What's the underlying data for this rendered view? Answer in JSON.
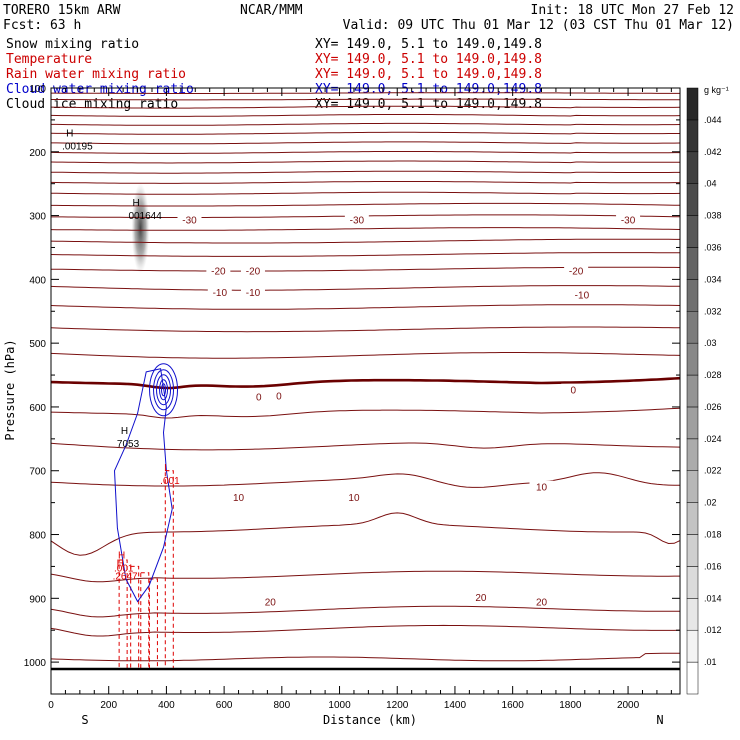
{
  "header": {
    "model": "TORERO  15km ARW",
    "org": "NCAR/MMM",
    "init": "Init: 18 UTC Mon 27 Feb 12",
    "fcst": "Fcst:   63 h",
    "valid": "Valid: 09 UTC Thu 01 Mar 12 (03 CST Thu 01 Mar 12)",
    "fields": [
      {
        "name": "Snow mixing ratio",
        "color": "#000000",
        "xy": "XY= 149.0,  5.1 to 149.0,149.8"
      },
      {
        "name": "Temperature",
        "color": "#cc0000",
        "xy": "XY= 149.0,  5.1 to 149.0,149.8"
      },
      {
        "name": "Rain water mixing ratio",
        "color": "#cc0000",
        "xy": "XY= 149.0,  5.1 to 149.0,149.8"
      },
      {
        "name": "Cloud water mixing ratio",
        "color": "#0000cc",
        "xy": "XY= 149.0,  5.1 to 149.0,149.8"
      },
      {
        "name": "Cloud ice mixing ratio",
        "color": "#000000",
        "xy": "XY= 149.0,  5.1 to 149.0,149.8"
      }
    ]
  },
  "colors": {
    "temperature": "#7a1010",
    "temperature_zero": "#6a0000",
    "rain": "#dd0000",
    "cloud_water": "#1010cc",
    "frame": "#000000"
  },
  "chart_data": {
    "type": "cross-section",
    "xlabel": "Distance (km)",
    "ylabel": "Pressure (hPa)",
    "xlim": [
      0,
      2180
    ],
    "ylim": [
      1050,
      100
    ],
    "xticks": [
      0,
      200,
      400,
      600,
      800,
      1000,
      1200,
      1400,
      1600,
      1800,
      2000
    ],
    "yticks": [
      100,
      200,
      300,
      400,
      500,
      600,
      700,
      800,
      900,
      1000
    ],
    "end_labels": {
      "left": "S",
      "right": "N"
    },
    "temperature_levels": [
      {
        "p": 108,
        "var": 0
      },
      {
        "p": 118,
        "var": 0
      },
      {
        "p": 130,
        "var": 1
      },
      {
        "p": 143,
        "var": 1
      },
      {
        "p": 157,
        "var": 1
      },
      {
        "p": 171,
        "var": 1
      },
      {
        "p": 186,
        "var": 1
      },
      {
        "p": 201,
        "var": 1
      },
      {
        "p": 216,
        "var": 1
      },
      {
        "p": 232,
        "var": 1
      },
      {
        "p": 248,
        "var": 1
      },
      {
        "p": 265,
        "var": 1
      },
      {
        "p": 284,
        "var": 2
      },
      {
        "p": 302,
        "var": 2
      },
      {
        "p": 322,
        "var": 2
      },
      {
        "p": 342,
        "var": 3
      },
      {
        "p": 363,
        "var": 3
      },
      {
        "p": 386,
        "var": 3
      },
      {
        "p": 411,
        "var": 4
      },
      {
        "p": 441,
        "var": 4
      },
      {
        "p": 476,
        "var": 4
      },
      {
        "p": 516,
        "var": 5
      },
      {
        "p": 561,
        "var": 6,
        "bold": true
      },
      {
        "p": 608,
        "var": 6
      },
      {
        "p": 657,
        "var": 7
      },
      {
        "p": 718,
        "var": 8
      },
      {
        "p": 790,
        "var": 9
      },
      {
        "p": 860,
        "var": 10
      },
      {
        "p": 915,
        "var": 10
      },
      {
        "p": 945,
        "var": 10
      },
      {
        "p": 995,
        "var": 11
      }
    ],
    "temperature_labels": [
      {
        "text": "-30",
        "x": 480,
        "p": 306
      },
      {
        "text": "-30",
        "x": 1060,
        "p": 306
      },
      {
        "text": "-30",
        "x": 2000,
        "p": 306
      },
      {
        "text": "-20",
        "x": 580,
        "p": 386
      },
      {
        "text": "-20",
        "x": 700,
        "p": 386
      },
      {
        "text": "-20",
        "x": 1820,
        "p": 386
      },
      {
        "text": "-10",
        "x": 585,
        "p": 420
      },
      {
        "text": "-10",
        "x": 700,
        "p": 420
      },
      {
        "text": "-10",
        "x": 1840,
        "p": 424
      },
      {
        "text": "0",
        "x": 720,
        "p": 584
      },
      {
        "text": "0",
        "x": 790,
        "p": 582
      },
      {
        "text": "0",
        "x": 1810,
        "p": 573
      },
      {
        "text": "10",
        "x": 1700,
        "p": 725
      },
      {
        "text": "10",
        "x": 650,
        "p": 741
      },
      {
        "text": "10",
        "x": 1050,
        "p": 741
      },
      {
        "text": "20",
        "x": 1490,
        "p": 898
      },
      {
        "text": "20",
        "x": 760,
        "p": 905
      },
      {
        "text": "20",
        "x": 1700,
        "p": 905
      }
    ],
    "extrema": [
      {
        "kind": "H",
        "value": ".00195",
        "x": 80,
        "p": 193
      },
      {
        "kind": "H",
        "value": "001644",
        "x": 310,
        "p": 302
      },
      {
        "kind": "H",
        "value": "7053",
        "x": 270,
        "p": 660
      },
      {
        "kind": "L",
        "value": ".001",
        "x": 420,
        "p": 718
      },
      {
        "kind": "H",
        "value": ".001",
        "x": 260,
        "p": 855
      },
      {
        "kind": "H",
        "value": ".2647",
        "x": 255,
        "p": 867
      }
    ],
    "snow_max_location": {
      "x": 310,
      "p": 320
    },
    "cloud_water_core": {
      "x": 390,
      "p": 573
    },
    "rain_columns": [
      250,
      290,
      325,
      355,
      410
    ],
    "colorbar": {
      "unit": "g kg⁻¹",
      "levels": [
        ".01",
        ".012",
        ".014",
        ".016",
        ".018",
        ".02",
        ".022",
        ".024",
        ".026",
        ".028",
        ".03",
        ".032",
        ".034",
        ".036",
        ".038",
        ".04",
        ".042",
        ".044"
      ]
    }
  }
}
